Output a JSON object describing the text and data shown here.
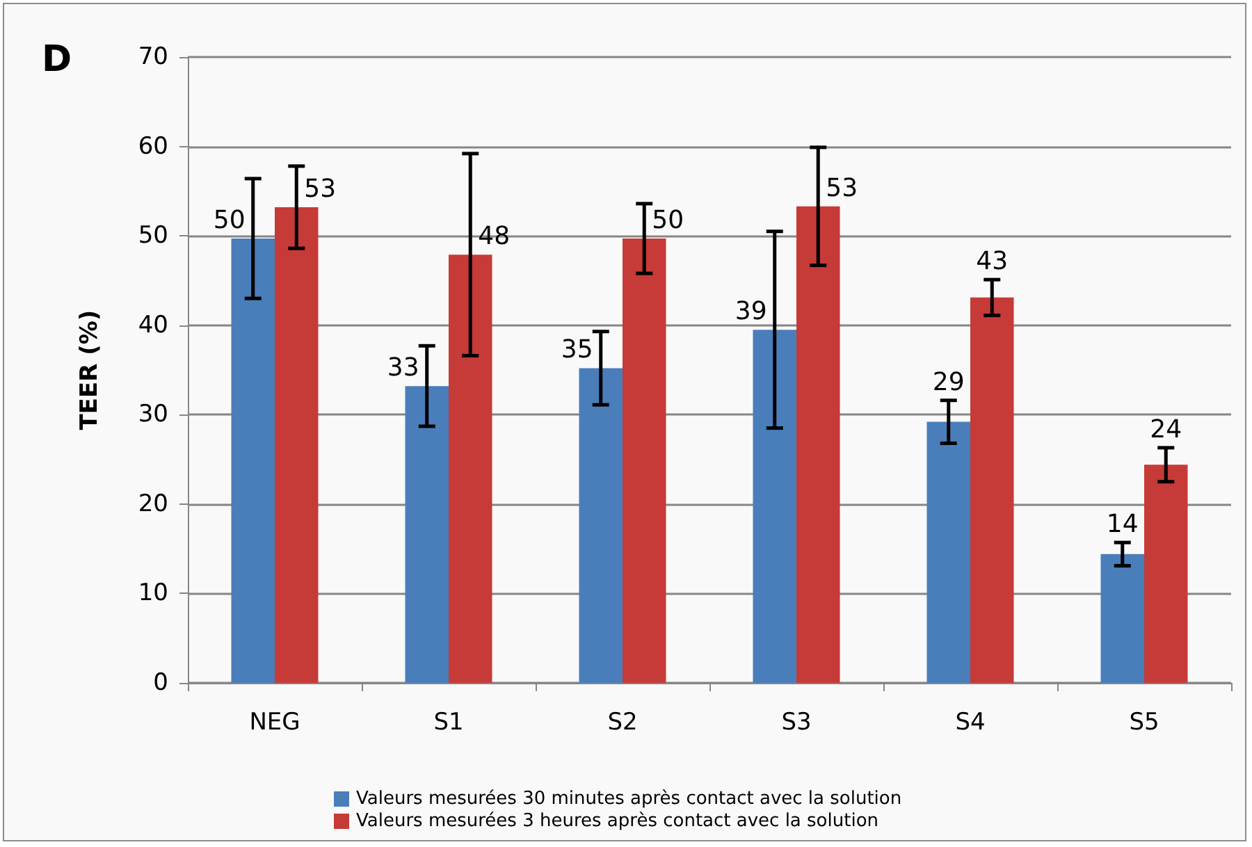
{
  "chart_data": {
    "type": "bar",
    "title": "D",
    "ylabel": "TEER (%)",
    "categories": [
      "NEG",
      "S1",
      "S2",
      "S3",
      "S4",
      "S5"
    ],
    "series": [
      {
        "name": "Valeurs mesurées 30 minutes après contact avec la solution",
        "color": "#4a7ebb",
        "values": [
          49.7,
          33.2,
          35.2,
          39.5,
          29.2,
          14.4
        ],
        "errors": [
          6.7,
          4.5,
          4.1,
          11,
          2.4,
          1.3
        ],
        "value_labels": [
          "50",
          "33",
          "35",
          "39",
          "29",
          "14"
        ]
      },
      {
        "name": "Valeurs mesurées 3 heures après contact avec la solution",
        "color": "#c63a37",
        "values": [
          53.2,
          47.9,
          49.7,
          53.3,
          43.1,
          24.4
        ],
        "errors": [
          4.6,
          11.3,
          3.9,
          6.6,
          2,
          1.9
        ],
        "value_labels": [
          "53",
          "48",
          "50",
          "53",
          "43",
          "24"
        ]
      }
    ],
    "ylim": [
      0,
      70
    ],
    "yticks": [
      0,
      10,
      20,
      30,
      40,
      50,
      60,
      70
    ],
    "grid": "y",
    "legend": "bottom"
  }
}
